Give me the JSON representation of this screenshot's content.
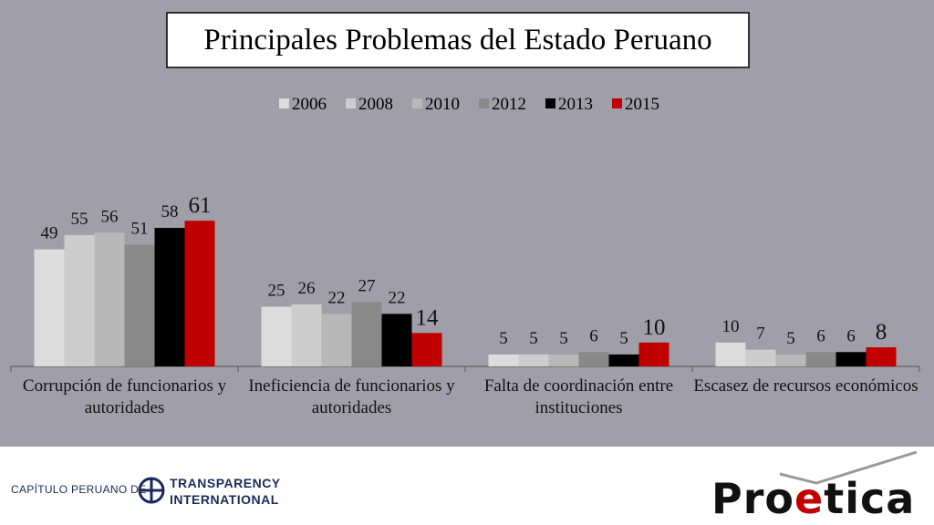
{
  "chart_data": {
    "type": "bar",
    "title": "Principales Problemas del Estado Peruano",
    "categories": [
      "Corrupción de funcionarios y\nautoridades",
      "Ineficiencia de funcionarios y\nautoridades",
      "Falta de coordinación entre\ninstituciones",
      "Escasez de recursos económicos"
    ],
    "series": [
      {
        "name": "2006",
        "color": "#dcdcdc",
        "values": [
          49,
          25,
          5,
          10
        ]
      },
      {
        "name": "2008",
        "color": "#cdcdcd",
        "values": [
          55,
          26,
          5,
          7
        ]
      },
      {
        "name": "2010",
        "color": "#b8b8b8",
        "values": [
          56,
          22,
          5,
          5
        ]
      },
      {
        "name": "2012",
        "color": "#898989",
        "values": [
          51,
          27,
          6,
          6
        ]
      },
      {
        "name": "2013",
        "color": "#000000",
        "values": [
          58,
          22,
          5,
          6
        ]
      },
      {
        "name": "2015",
        "color": "#c00000",
        "values": [
          61,
          14,
          10,
          8
        ]
      }
    ],
    "legend": "top"
  },
  "footer": {
    "chapter": "CAPÍTULO PERUANO DE",
    "ti_line1": "TRANSPARENCY",
    "ti_line2": "INTERNATIONAL",
    "logo": [
      "Pro",
      "e",
      "tica"
    ]
  }
}
